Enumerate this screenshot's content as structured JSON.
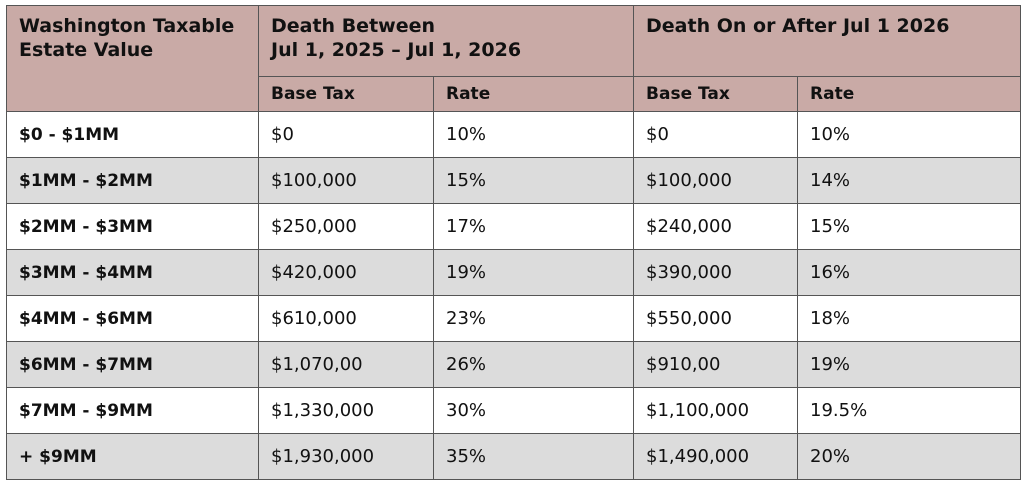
{
  "table": {
    "header": {
      "first": [
        "Washington Taxable",
        "Estate Value"
      ],
      "groups": [
        [
          "Death Between",
          "Jul 1, 2025 – Jul 1, 2026"
        ],
        [
          "Death On or After Jul 1 2026"
        ]
      ],
      "sub": [
        "Base Tax",
        "Rate",
        "Base Tax",
        "Rate"
      ]
    },
    "rows": [
      [
        "$0 - $1MM",
        "$0",
        "10%",
        "$0",
        "10%"
      ],
      [
        "$1MM - $2MM",
        "$100,000",
        "15%",
        "$100,000",
        "14%"
      ],
      [
        "$2MM - $3MM",
        "$250,000",
        "17%",
        "$240,000",
        "15%"
      ],
      [
        "$3MM - $4MM",
        "$420,000",
        "19%",
        "$390,000",
        "16%"
      ],
      [
        "$4MM - $6MM",
        "$610,000",
        "23%",
        "$550,000",
        "18%"
      ],
      [
        "$6MM - $7MM",
        "$1,070,00",
        "26%",
        "$910,00",
        "19%"
      ],
      [
        "$7MM - $9MM",
        "$1,330,000",
        "30%",
        "$1,100,000",
        "19.5%"
      ],
      [
        "+ $9MM",
        "$1,930,000",
        "35%",
        "$1,490,000",
        "20%"
      ]
    ]
  }
}
